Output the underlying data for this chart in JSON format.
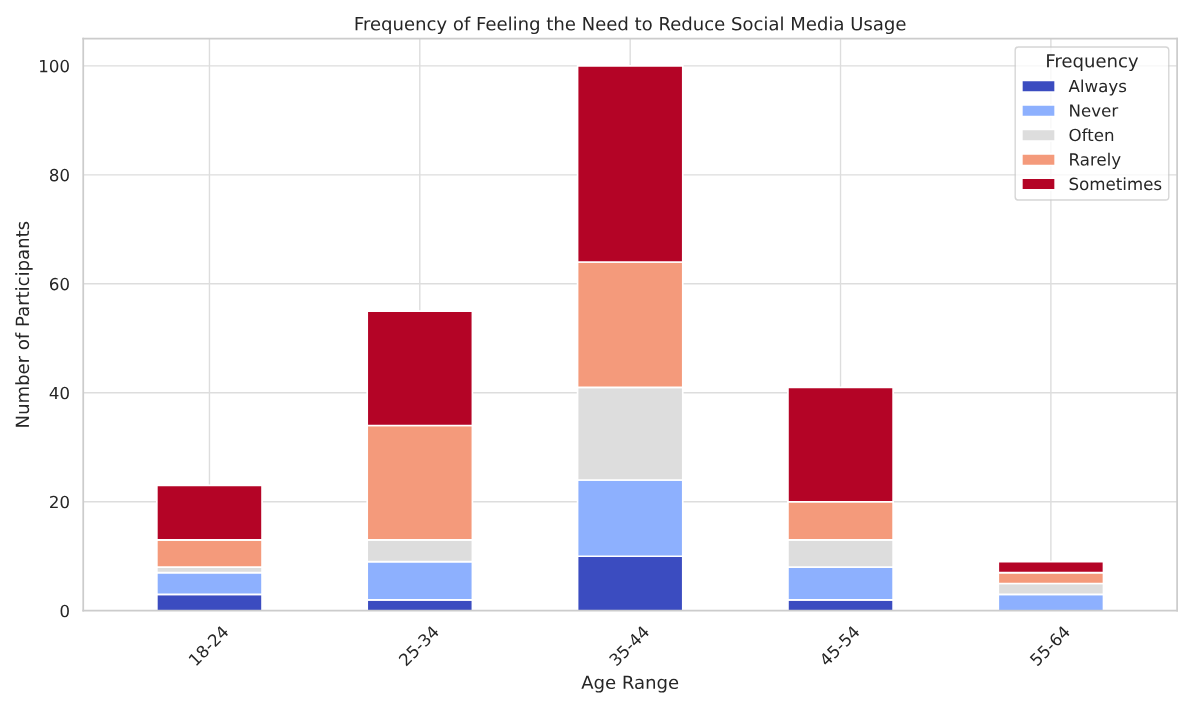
{
  "chart_data": {
    "type": "bar",
    "stacked": true,
    "title": "Frequency of Feeling the Need to Reduce Social Media Usage",
    "xlabel": "Age Range",
    "ylabel": "Number of Participants",
    "legend_title": "Frequency",
    "categories": [
      "18-24",
      "25-34",
      "35-44",
      "45-54",
      "55-64"
    ],
    "series": [
      {
        "name": "Always",
        "color": "#3b4cc0",
        "values": [
          3,
          2,
          10,
          2,
          0
        ]
      },
      {
        "name": "Never",
        "color": "#8db0fe",
        "values": [
          4,
          7,
          14,
          6,
          3
        ]
      },
      {
        "name": "Often",
        "color": "#dddddd",
        "values": [
          1,
          4,
          17,
          5,
          2
        ]
      },
      {
        "name": "Rarely",
        "color": "#f49a7b",
        "values": [
          5,
          21,
          23,
          7,
          2
        ]
      },
      {
        "name": "Sometimes",
        "color": "#b40426",
        "values": [
          10,
          21,
          36,
          21,
          2
        ]
      }
    ],
    "ylim": [
      0,
      105
    ],
    "yticks": [
      0,
      20,
      40,
      60,
      80,
      100
    ],
    "grid": true,
    "legend": "top right"
  }
}
